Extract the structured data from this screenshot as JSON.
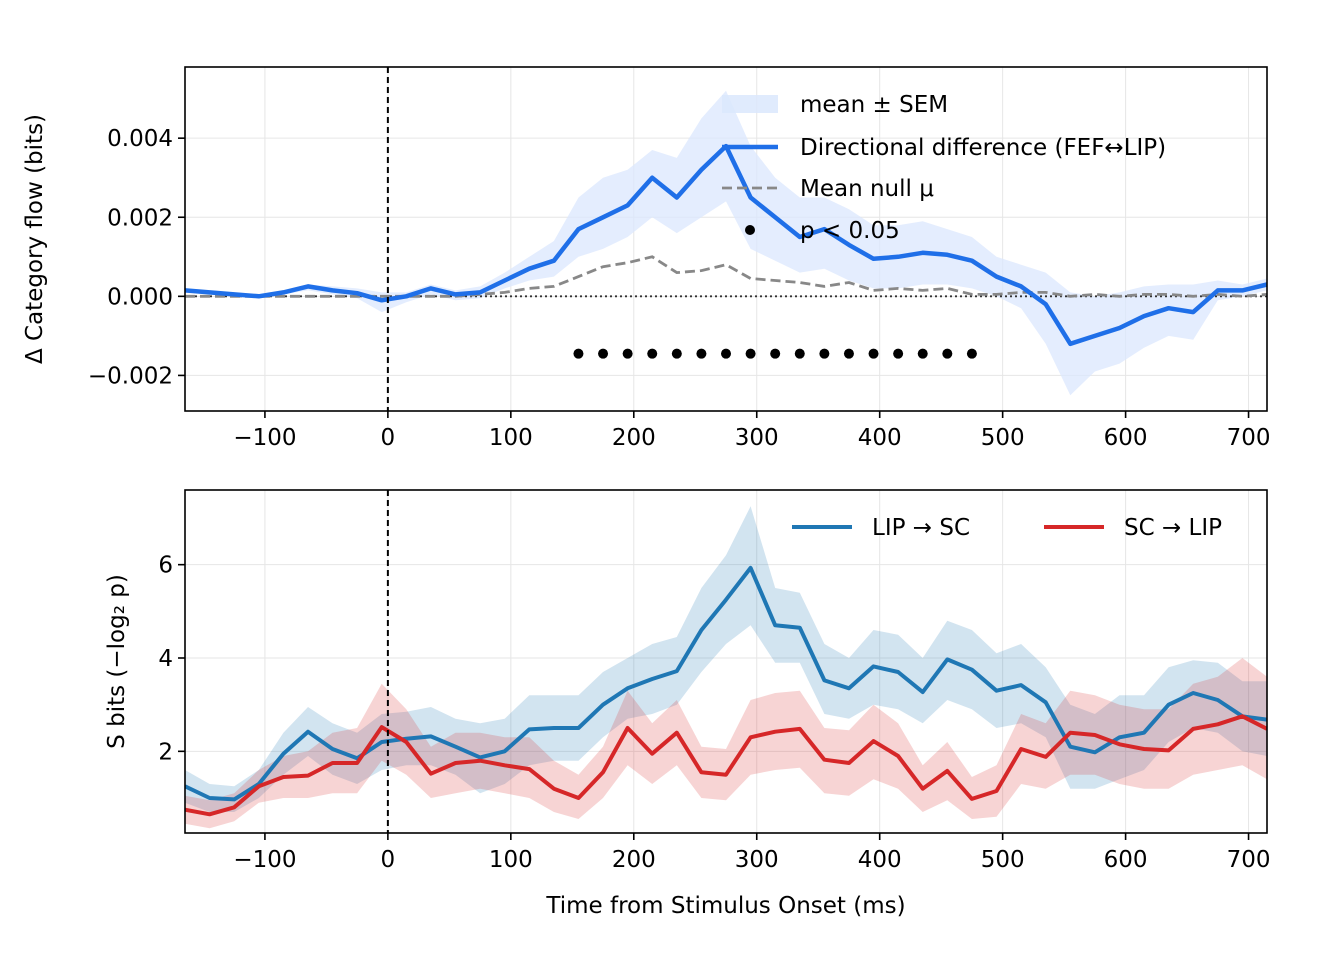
{
  "colors": {
    "top_line": "#1f6fe8",
    "top_band": "#dbe7fd",
    "null_line": "#888888",
    "lip_sc": "#1f77b4",
    "sc_lip": "#d62728",
    "grid": "#e6e6e6"
  },
  "chart_data": [
    {
      "type": "line",
      "xlabel": "",
      "ylabel": "Δ Category flow (bits)",
      "xlim": [
        -165,
        715
      ],
      "ylim": [
        -0.0029,
        0.0058
      ],
      "xticks": [
        -100,
        0,
        100,
        200,
        300,
        400,
        500,
        600,
        700
      ],
      "xtick_labels": [
        "−100",
        "0",
        "100",
        "200",
        "300",
        "400",
        "500",
        "600",
        "700"
      ],
      "yticks": [
        -0.002,
        0.0,
        0.002,
        0.004
      ],
      "ytick_labels": [
        "−0.002",
        "0.000",
        "0.002",
        "0.004"
      ],
      "grid": true,
      "legend_position": "top-right",
      "stimulus_onset_line": 0,
      "zero_line": 0,
      "x": [
        -165,
        -145,
        -125,
        -105,
        -85,
        -65,
        -45,
        -25,
        -5,
        15,
        35,
        55,
        75,
        95,
        115,
        135,
        155,
        175,
        195,
        215,
        235,
        255,
        275,
        295,
        315,
        335,
        355,
        375,
        395,
        415,
        435,
        455,
        475,
        495,
        515,
        535,
        555,
        575,
        595,
        615,
        635,
        655,
        675,
        695,
        715
      ],
      "series": [
        {
          "name": "Directional difference (FEF↔LIP)",
          "role": "mean",
          "values": [
            0.00015,
            0.0001,
            5e-05,
            0.0,
            0.0001,
            0.00025,
            0.00015,
            8e-05,
            -0.0001,
            0.0,
            0.0002,
            5e-05,
            0.0001,
            0.0004,
            0.0007,
            0.0009,
            0.0017,
            0.002,
            0.0023,
            0.003,
            0.0025,
            0.0032,
            0.0038,
            0.0025,
            0.002,
            0.0015,
            0.0017,
            0.0013,
            0.00095,
            0.001,
            0.0011,
            0.00105,
            0.0009,
            0.0005,
            0.00025,
            -0.0002,
            -0.0012,
            -0.001,
            -0.0008,
            -0.0005,
            -0.0003,
            -0.0004,
            0.00015,
            0.00015,
            0.0003
          ]
        },
        {
          "name": "mean ± SEM",
          "role": "band",
          "lower": [
            0.0001,
            5e-05,
            0.0,
            -5e-05,
            5e-05,
            0.00015,
            5e-05,
            -5e-05,
            -0.0004,
            -0.00015,
            5e-05,
            -0.0001,
            -5e-05,
            0.0002,
            0.0004,
            0.0005,
            0.001,
            0.0012,
            0.0015,
            0.002,
            0.0016,
            0.002,
            0.0024,
            0.0012,
            0.0009,
            0.0006,
            0.0007,
            0.0004,
            0.0002,
            0.0002,
            0.0003,
            0.0003,
            0.0002,
            0.0,
            -0.0003,
            -0.0012,
            -0.0025,
            -0.0019,
            -0.0017,
            -0.0013,
            -0.001,
            -0.0011,
            -0.0001,
            0.0,
            0.00015
          ],
          "upper": [
            0.0002,
            0.00015,
            0.0001,
            5e-05,
            0.00015,
            0.0003,
            0.00025,
            0.0002,
            0.0001,
            0.0001,
            0.0003,
            0.00015,
            0.00025,
            0.0006,
            0.001,
            0.0014,
            0.0025,
            0.003,
            0.0032,
            0.0037,
            0.0035,
            0.0045,
            0.0052,
            0.0038,
            0.003,
            0.0025,
            0.0025,
            0.0022,
            0.0018,
            0.0018,
            0.0019,
            0.0017,
            0.0015,
            0.001,
            0.0008,
            0.0006,
            0.0001,
            0.0,
            0.0001,
            0.00025,
            0.0003,
            0.0003,
            0.0004,
            0.0003,
            0.00045
          ]
        },
        {
          "name": "Mean null μ",
          "role": "null",
          "values": [
            0.0,
            0.0,
            0.0,
            0.0,
            0.0,
            0.0,
            0.0,
            0.0,
            0.0,
            0.0,
            0.0,
            0.0,
            5e-05,
            0.0001,
            0.0002,
            0.00025,
            0.0005,
            0.00075,
            0.00085,
            0.001,
            0.0006,
            0.00065,
            0.0008,
            0.00045,
            0.0004,
            0.00035,
            0.00025,
            0.00035,
            0.00015,
            0.0002,
            0.00015,
            0.0002,
            5e-05,
            5e-05,
            0.0001,
            0.0001,
            0.0,
            5e-05,
            0.0,
            5e-05,
            5e-05,
            0.0,
            5e-05,
            0.0,
            5e-05
          ]
        },
        {
          "name": "p < 0.05",
          "role": "significance",
          "x": [
            155,
            175,
            195,
            215,
            235,
            255,
            275,
            295,
            315,
            335,
            355,
            375,
            395,
            415,
            435,
            455,
            475
          ],
          "y": -0.00145
        }
      ]
    },
    {
      "type": "line",
      "xlabel": "Time from Stimulus Onset (ms)",
      "ylabel": "S bits (−log₂ p)",
      "xlim": [
        -165,
        715
      ],
      "ylim": [
        0.25,
        7.6
      ],
      "xticks": [
        -100,
        0,
        100,
        200,
        300,
        400,
        500,
        600,
        700
      ],
      "xtick_labels": [
        "−100",
        "0",
        "100",
        "200",
        "300",
        "400",
        "500",
        "600",
        "700"
      ],
      "yticks": [
        2,
        4,
        6
      ],
      "ytick_labels": [
        "2",
        "4",
        "6"
      ],
      "grid": true,
      "legend_position": "top-right",
      "stimulus_onset_line": 0,
      "x": [
        -165,
        -145,
        -125,
        -105,
        -85,
        -65,
        -45,
        -25,
        -5,
        15,
        35,
        55,
        75,
        95,
        115,
        135,
        155,
        175,
        195,
        215,
        235,
        255,
        275,
        295,
        315,
        335,
        355,
        375,
        395,
        415,
        435,
        455,
        475,
        495,
        515,
        535,
        555,
        575,
        595,
        615,
        635,
        655,
        675,
        695,
        715
      ],
      "series": [
        {
          "name": "LIP → SC",
          "values": [
            1.25,
            1.0,
            0.97,
            1.3,
            1.95,
            2.42,
            2.05,
            1.85,
            2.2,
            2.27,
            2.32,
            2.1,
            1.87,
            2.0,
            2.47,
            2.5,
            2.5,
            3.0,
            3.35,
            3.55,
            3.72,
            4.6,
            5.25,
            5.93,
            4.7,
            4.65,
            3.52,
            3.35,
            3.82,
            3.7,
            3.27,
            3.97,
            3.75,
            3.3,
            3.42,
            3.05,
            2.1,
            1.98,
            2.3,
            2.4,
            3.0,
            3.25,
            3.1,
            2.75,
            2.68
          ],
          "lower": [
            0.9,
            0.7,
            0.7,
            1.0,
            1.5,
            1.9,
            1.5,
            1.3,
            1.6,
            1.7,
            1.7,
            1.5,
            1.1,
            1.3,
            1.7,
            1.8,
            1.8,
            2.3,
            2.7,
            2.8,
            3.0,
            3.7,
            4.3,
            4.7,
            3.9,
            3.9,
            2.8,
            2.7,
            3.0,
            2.9,
            2.6,
            3.1,
            2.9,
            2.5,
            2.6,
            2.3,
            1.2,
            1.2,
            1.4,
            1.6,
            2.2,
            2.5,
            2.4,
            2.0,
            1.9
          ],
          "upper": [
            1.6,
            1.3,
            1.25,
            1.6,
            2.4,
            2.95,
            2.6,
            2.4,
            2.8,
            2.85,
            2.95,
            2.7,
            2.6,
            2.7,
            3.2,
            3.2,
            3.2,
            3.7,
            4.0,
            4.3,
            4.45,
            5.5,
            6.2,
            7.25,
            5.5,
            5.4,
            4.3,
            4.0,
            4.6,
            4.5,
            4.0,
            4.8,
            4.6,
            4.1,
            4.3,
            3.8,
            3.0,
            2.8,
            3.2,
            3.2,
            3.8,
            3.95,
            3.9,
            3.5,
            3.5
          ]
        },
        {
          "name": "SC → LIP",
          "values": [
            0.75,
            0.65,
            0.8,
            1.25,
            1.45,
            1.48,
            1.75,
            1.75,
            2.52,
            2.2,
            1.52,
            1.75,
            1.8,
            1.7,
            1.62,
            1.2,
            1.0,
            1.55,
            2.5,
            1.95,
            2.4,
            1.55,
            1.5,
            2.3,
            2.42,
            2.48,
            1.82,
            1.75,
            2.22,
            1.9,
            1.2,
            1.58,
            0.98,
            1.15,
            2.05,
            1.88,
            2.4,
            2.35,
            2.15,
            2.05,
            2.02,
            2.48,
            2.58,
            2.75,
            2.48
          ],
          "lower": [
            0.45,
            0.35,
            0.5,
            0.9,
            1.0,
            1.0,
            1.1,
            1.1,
            1.8,
            1.5,
            1.0,
            1.1,
            1.2,
            1.1,
            1.0,
            0.7,
            0.55,
            1.0,
            1.7,
            1.3,
            1.7,
            1.0,
            0.95,
            1.5,
            1.6,
            1.65,
            1.1,
            1.05,
            1.4,
            1.2,
            0.7,
            0.95,
            0.55,
            0.6,
            1.3,
            1.2,
            1.5,
            1.5,
            1.3,
            1.2,
            1.2,
            1.5,
            1.6,
            1.7,
            1.4
          ],
          "upper": [
            1.05,
            0.95,
            1.1,
            1.6,
            1.9,
            2.0,
            2.4,
            2.5,
            3.45,
            2.9,
            2.1,
            2.4,
            2.4,
            2.3,
            2.3,
            1.8,
            1.5,
            2.1,
            3.3,
            2.6,
            3.1,
            2.1,
            2.05,
            3.1,
            3.25,
            3.3,
            2.5,
            2.45,
            3.0,
            2.6,
            1.7,
            2.2,
            1.45,
            1.7,
            2.8,
            2.6,
            3.3,
            3.2,
            3.0,
            2.9,
            2.9,
            3.45,
            3.6,
            4.0,
            3.6
          ]
        }
      ]
    }
  ]
}
